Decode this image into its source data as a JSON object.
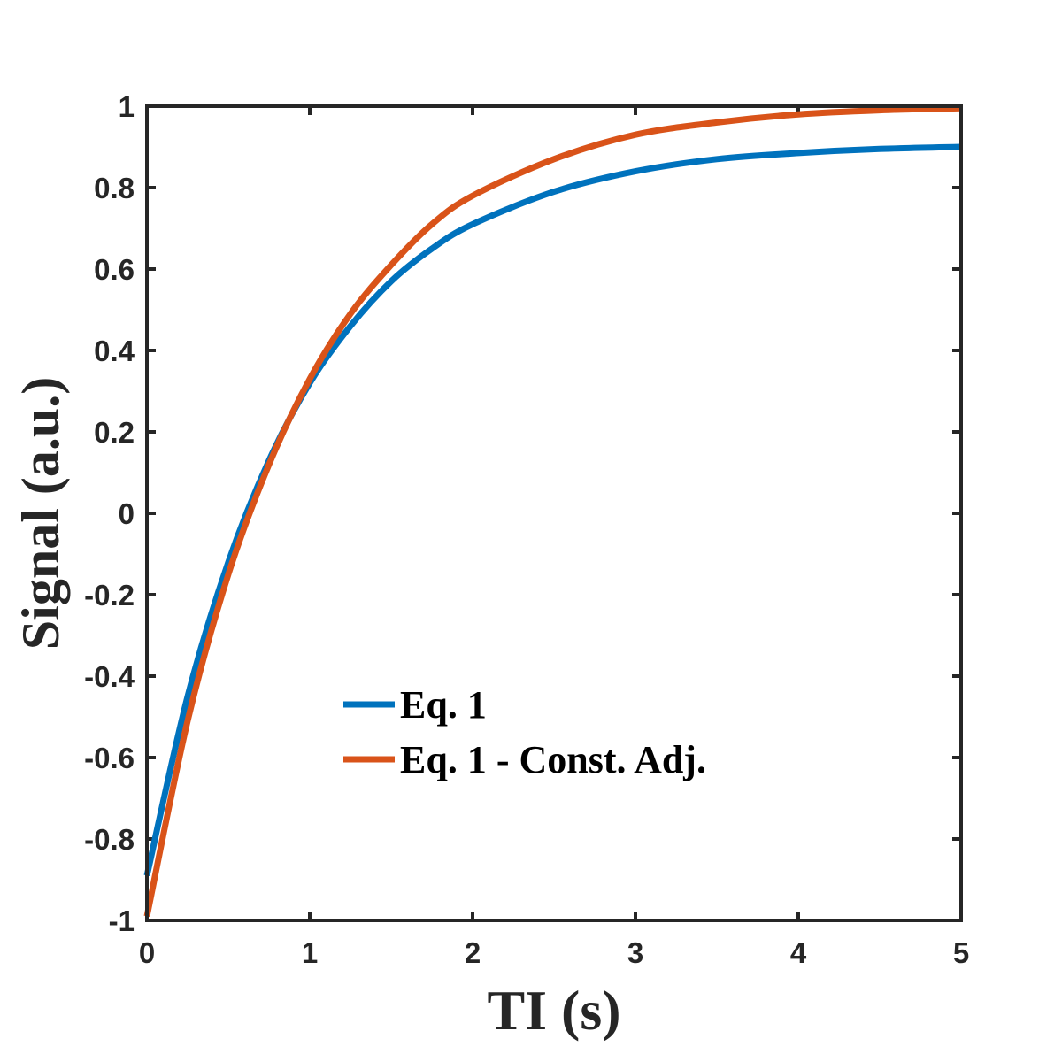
{
  "chart_data": {
    "type": "line",
    "xlabel": "TI (s)",
    "ylabel": "Signal (a.u.)",
    "xlim": [
      0,
      5
    ],
    "ylim": [
      -1,
      1
    ],
    "xticks": [
      0,
      1,
      2,
      3,
      4,
      5
    ],
    "xtick_labels": [
      "0",
      "1",
      "2",
      "3",
      "4",
      "5"
    ],
    "yticks": [
      -1,
      -0.8,
      -0.6,
      -0.4,
      -0.2,
      0,
      0.2,
      0.4,
      0.6,
      0.8,
      1
    ],
    "ytick_labels": [
      "-1",
      "-0.8",
      "-0.6",
      "-0.4",
      "-0.2",
      "0",
      "0.2",
      "0.4",
      "0.6",
      "0.8",
      "1"
    ],
    "grid": false,
    "legend_position": "center",
    "x": [
      0,
      0.25,
      0.5,
      0.75,
      1,
      1.25,
      1.5,
      1.75,
      2,
      2.5,
      3,
      3.5,
      4,
      4.5,
      5
    ],
    "series": [
      {
        "name": "Eq. 1",
        "color": "#0072BD",
        "values": [
          -0.89,
          -0.45,
          -0.12,
          0.13,
          0.32,
          0.46,
          0.57,
          0.65,
          0.71,
          0.79,
          0.84,
          0.87,
          0.885,
          0.895,
          0.9
        ]
      },
      {
        "name": "Eq. 1 - Const. Adj.",
        "color": "#D95319",
        "values": [
          -0.99,
          -0.51,
          -0.15,
          0.12,
          0.33,
          0.49,
          0.61,
          0.71,
          0.78,
          0.87,
          0.93,
          0.96,
          0.98,
          0.99,
          0.995
        ]
      }
    ]
  }
}
